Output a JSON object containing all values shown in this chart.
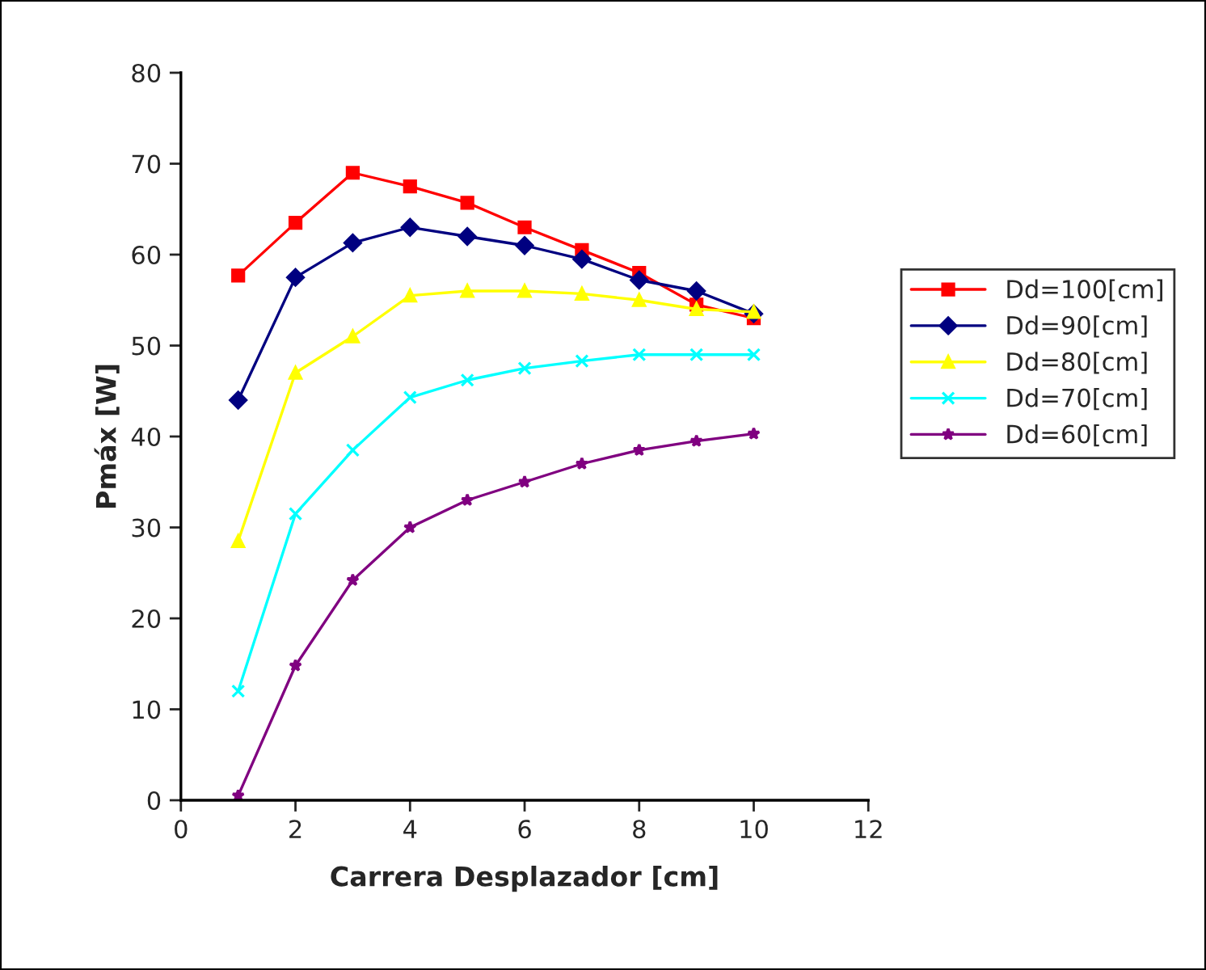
{
  "chart_data": {
    "type": "line",
    "xlabel": "Carrera Desplazador [cm]",
    "ylabel": "Pmáx [W]",
    "x": [
      1,
      2,
      3,
      4,
      5,
      6,
      7,
      8,
      9,
      10
    ],
    "xlim": [
      0,
      12
    ],
    "xticks": [
      0,
      2,
      4,
      6,
      8,
      10,
      12
    ],
    "ylim": [
      0,
      80
    ],
    "yticks": [
      0,
      10,
      20,
      30,
      40,
      50,
      60,
      70,
      80
    ],
    "grid": false,
    "legend": "right",
    "series": [
      {
        "name": "Dd=100[cm]",
        "color": "#ff0000",
        "marker": "square",
        "values": [
          57.7,
          63.5,
          69,
          67.5,
          65.7,
          63,
          60.5,
          58,
          54.5,
          53
        ]
      },
      {
        "name": "Dd=90[cm]",
        "color": "#000080",
        "marker": "diamond",
        "values": [
          44,
          57.5,
          61.3,
          63,
          62,
          61,
          59.5,
          57.2,
          56,
          53.5
        ]
      },
      {
        "name": "Dd=80[cm]",
        "color": "#ffff00",
        "marker": "triangle",
        "values": [
          28.5,
          47,
          51,
          55.5,
          56,
          56,
          55.7,
          55,
          54,
          53.7
        ]
      },
      {
        "name": "Dd=70[cm]",
        "color": "#00ffff",
        "marker": "cross",
        "values": [
          12,
          31.5,
          38.5,
          44.3,
          46.2,
          47.5,
          48.3,
          49,
          49,
          49
        ]
      },
      {
        "name": "Dd=60[cm]",
        "color": "#800080",
        "marker": "star",
        "values": [
          0.5,
          14.8,
          24.2,
          30,
          33,
          35,
          37,
          38.5,
          39.5,
          40.3
        ]
      }
    ]
  }
}
